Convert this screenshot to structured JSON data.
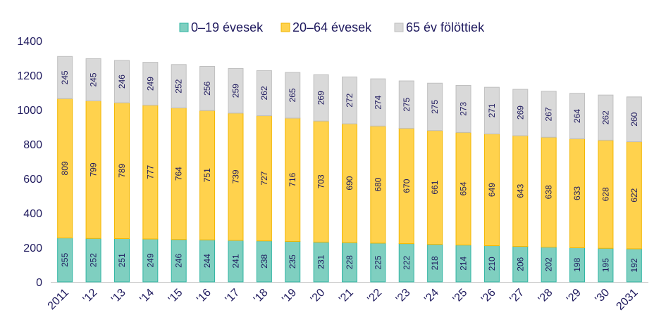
{
  "chart_data": {
    "type": "bar",
    "stacked": true,
    "categories": [
      "2011",
      "'12",
      "'13",
      "'14",
      "'15",
      "'16",
      "'17",
      "'18",
      "'19",
      "'20",
      "'21",
      "'22",
      "'23",
      "'24",
      "'25",
      "'26",
      "'27",
      "'28",
      "'29",
      "'30",
      "2031"
    ],
    "series": [
      {
        "name": "0–19 évesek",
        "color": "#7fcfc0",
        "border": "#2fb4a2",
        "values": [
          255,
          252,
          251,
          249,
          246,
          244,
          241,
          238,
          235,
          231,
          228,
          225,
          222,
          218,
          214,
          210,
          206,
          202,
          198,
          195,
          192
        ]
      },
      {
        "name": "20–64 évesek",
        "color": "#ffd24d",
        "border": "#f2b600",
        "values": [
          809,
          799,
          789,
          777,
          764,
          751,
          739,
          727,
          716,
          703,
          690,
          680,
          670,
          661,
          654,
          649,
          643,
          638,
          633,
          628,
          622
        ]
      },
      {
        "name": "65 év fölöttiek",
        "color": "#d9d9d9",
        "border": "#bfbfbf",
        "values": [
          245,
          245,
          246,
          249,
          252,
          256,
          259,
          262,
          265,
          269,
          272,
          274,
          275,
          275,
          273,
          271,
          269,
          267,
          264,
          262,
          260
        ]
      }
    ],
    "yticks": [
      0,
      200,
      400,
      600,
      800,
      1000,
      1200,
      1400
    ],
    "ylim": [
      0,
      1400
    ],
    "legend_position": "top",
    "grid": false,
    "colors": {
      "axis_text": "#1f1a5e",
      "data_label": "#1f1a5e",
      "axis_line": "#bfbfbf"
    }
  }
}
